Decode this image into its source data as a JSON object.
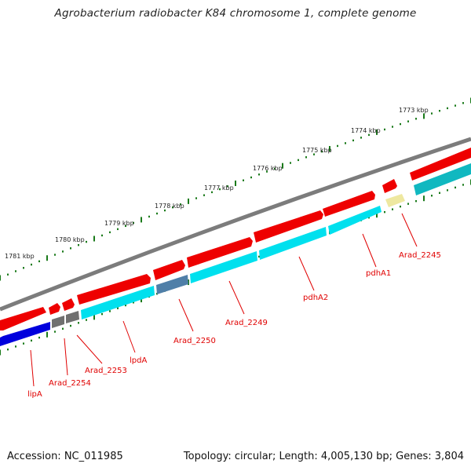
{
  "title": "Agrobacterium radiobacter K84 chromosome 1, complete genome",
  "footer": {
    "accession": "Accession: NC_011985",
    "stats": "Topology: circular; Length: 4,005,130 bp; Genes: 3,804"
  },
  "colors": {
    "forward_gene": "#ee0000",
    "reverse_cds": "#00e0ee",
    "reverse_cds_dark": "#10b8c0",
    "hypothetical_gray": "#707070",
    "steelblue": "#4f7fa8",
    "lipA_blue": "#0000dd",
    "pale_yellow": "#eee8a0",
    "backbone": "#7c7c7c",
    "tick_green": "#1a7a1a",
    "label_red": "#e00000"
  },
  "kbp_labels": [
    {
      "id": "1773",
      "text": "1773 kbp"
    },
    {
      "id": "1774",
      "text": "1774 kbp"
    },
    {
      "id": "1775",
      "text": "1775 kbp"
    },
    {
      "id": "1776",
      "text": "1776 kbp"
    },
    {
      "id": "1777",
      "text": "1777 kbp"
    },
    {
      "id": "1778",
      "text": "1778 kbp"
    },
    {
      "id": "1779",
      "text": "1779 kbp"
    },
    {
      "id": "1780",
      "text": "1780 kbp"
    },
    {
      "id": "1781",
      "text": "1781 kbp"
    }
  ],
  "gene_labels": [
    {
      "id": "arad2245",
      "text": "Arad_2245"
    },
    {
      "id": "pdha1",
      "text": "pdhA1"
    },
    {
      "id": "pdha2",
      "text": "pdhA2"
    },
    {
      "id": "arad2249",
      "text": "Arad_2249"
    },
    {
      "id": "arad2250",
      "text": "Arad_2250"
    },
    {
      "id": "lpda",
      "text": "lpdA"
    },
    {
      "id": "arad2253",
      "text": "Arad_2253"
    },
    {
      "id": "arad2254",
      "text": "Arad_2254"
    },
    {
      "id": "lipa",
      "text": "lipA"
    }
  ]
}
